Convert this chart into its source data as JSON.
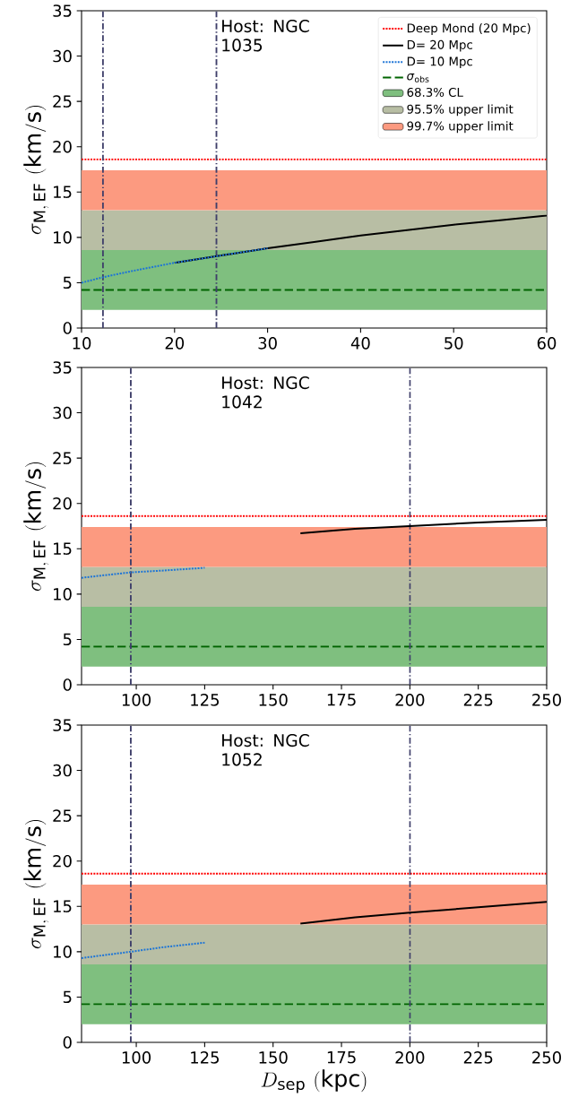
{
  "chart_data": [
    {
      "type": "line",
      "ylabel": "\\sigma_{\\mathrm{M,\\,EF}}\\ \\mathrm{(km/s)}",
      "annotations": [
        "Host: NGC 1035"
      ],
      "xlim": [
        10,
        60
      ],
      "xticks": [
        10,
        20,
        30,
        40,
        50,
        60
      ],
      "ylim": [
        0,
        35
      ],
      "yticks": [
        0,
        5,
        10,
        15,
        20,
        25,
        30,
        35
      ],
      "legend": "top right",
      "series": [
        {
          "name": "D= 20 Mpc",
          "color": "#000000",
          "line_style": "solid",
          "x": [
            20,
            25,
            30,
            35,
            40,
            45,
            50,
            55,
            60
          ],
          "values": [
            7.2,
            8.0,
            8.8,
            9.5,
            10.2,
            10.8,
            11.4,
            11.9,
            12.4
          ]
        },
        {
          "name": "D= 10 Mpc",
          "color": "#1e75d6",
          "line_style": "dotted",
          "x": [
            10,
            12.3,
            15,
            20,
            25,
            30
          ],
          "values": [
            5.0,
            5.6,
            6.2,
            7.2,
            8.0,
            8.8
          ]
        }
      ],
      "ref_lines": [
        {
          "axis": "y",
          "value": 18.6,
          "label": "Deep Mond (20 Mpc)",
          "color": "#ff0000",
          "line_style": "dotted"
        },
        {
          "axis": "y",
          "value": 4.2,
          "label": "*σ*$_{obs}$",
          "color": "#006400",
          "line_style": "dashed"
        },
        {
          "axis": "x",
          "value": 12.3,
          "color": "#3f3f6a",
          "line_style": "dashdot"
        },
        {
          "axis": "x",
          "value": 24.5,
          "color": "#3f3f6a",
          "line_style": "dashdot"
        }
      ],
      "bands": [
        {
          "axis": "y",
          "from": 2.0,
          "to": 8.6,
          "label": "68.3% CL",
          "color": "#7fbf7f"
        },
        {
          "axis": "y",
          "from": 8.6,
          "to": 13.0,
          "label": "95.5% upper limit",
          "color": "#b8bea4"
        },
        {
          "axis": "y",
          "from": 13.0,
          "to": 17.4,
          "label": "99.7% upper limit",
          "color": "#fc9a80"
        }
      ]
    },
    {
      "type": "line",
      "ylabel": "\\sigma_{\\mathrm{M,\\,EF}}\\ \\mathrm{(km/s)}",
      "annotations": [
        "Host: NGC 1042"
      ],
      "xlim": [
        80,
        250
      ],
      "xticks": [
        100,
        125,
        150,
        175,
        200,
        225,
        250
      ],
      "ylim": [
        0,
        35
      ],
      "yticks": [
        0,
        5,
        10,
        15,
        20,
        25,
        30,
        35
      ],
      "series": [
        {
          "color": "#000000",
          "line_style": "solid",
          "x": [
            160,
            180,
            200,
            225,
            250
          ],
          "values": [
            16.7,
            17.2,
            17.5,
            17.9,
            18.2
          ]
        },
        {
          "color": "#1e75d6",
          "line_style": "dotted",
          "x": [
            80,
            98,
            110,
            125
          ],
          "values": [
            11.8,
            12.4,
            12.6,
            12.9
          ]
        }
      ],
      "ref_lines": [
        {
          "axis": "y",
          "value": 18.6,
          "color": "#ff0000",
          "line_style": "dotted"
        },
        {
          "axis": "y",
          "value": 4.2,
          "color": "#006400",
          "line_style": "dashed"
        },
        {
          "axis": "x",
          "value": 98,
          "color": "#3f3f6a",
          "line_style": "dashdot"
        },
        {
          "axis": "x",
          "value": 200,
          "color": "#3f3f6a",
          "line_style": "dashdot"
        }
      ],
      "bands": [
        {
          "axis": "y",
          "from": 2.0,
          "to": 8.6,
          "color": "#7fbf7f"
        },
        {
          "axis": "y",
          "from": 8.6,
          "to": 13.0,
          "color": "#b8bea4"
        },
        {
          "axis": "y",
          "from": 13.0,
          "to": 17.4,
          "color": "#fc9a80"
        }
      ]
    },
    {
      "type": "line",
      "xlabel": "D_{\\mathrm{sep}}\\ \\mathrm{(kpc)}",
      "ylabel": "\\sigma_{\\mathrm{M,\\,EF}}\\ \\mathrm{(km/s)}",
      "annotations": [
        "Host: NGC 1052"
      ],
      "xlim": [
        80,
        250
      ],
      "xticks": [
        100,
        125,
        150,
        175,
        200,
        225,
        250
      ],
      "ylim": [
        0,
        35
      ],
      "yticks": [
        0,
        5,
        10,
        15,
        20,
        25,
        30,
        35
      ],
      "series": [
        {
          "color": "#000000",
          "line_style": "solid",
          "x": [
            160,
            180,
            200,
            225,
            250
          ],
          "values": [
            13.1,
            13.8,
            14.3,
            14.9,
            15.5
          ]
        },
        {
          "color": "#1e75d6",
          "line_style": "dotted",
          "x": [
            80,
            98,
            110,
            125
          ],
          "values": [
            9.3,
            10.0,
            10.5,
            11.0
          ]
        }
      ],
      "ref_lines": [
        {
          "axis": "y",
          "value": 18.6,
          "color": "#ff0000",
          "line_style": "dotted"
        },
        {
          "axis": "y",
          "value": 4.2,
          "color": "#006400",
          "line_style": "dashed"
        },
        {
          "axis": "x",
          "value": 98,
          "color": "#3f3f6a",
          "line_style": "dashdot"
        },
        {
          "axis": "x",
          "value": 200,
          "color": "#3f3f6a",
          "line_style": "dashdot"
        }
      ],
      "bands": [
        {
          "axis": "y",
          "from": 2.0,
          "to": 8.6,
          "color": "#7fbf7f"
        },
        {
          "axis": "y",
          "from": 8.6,
          "to": 13.0,
          "color": "#b8bea4"
        },
        {
          "axis": "y",
          "from": 13.0,
          "to": 17.4,
          "color": "#fc9a80"
        }
      ]
    }
  ]
}
